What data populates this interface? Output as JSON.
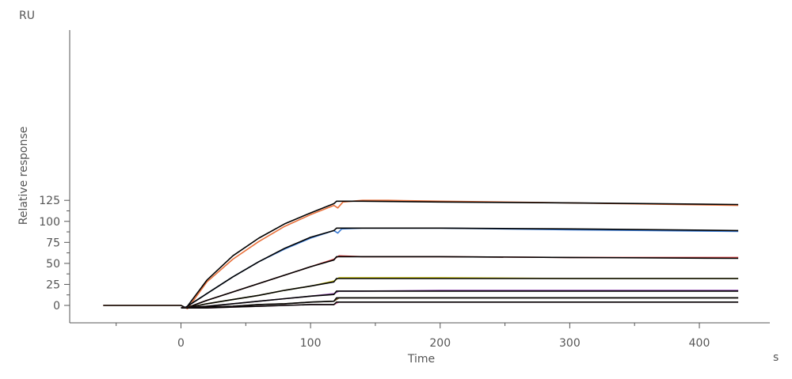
{
  "chart_data": {
    "type": "line",
    "title": "",
    "xlabel": "Time",
    "ylabel": "Relative response",
    "x_unit": "s",
    "y_unit": "RU",
    "xlim": [
      -62,
      435
    ],
    "ylim": [
      -4,
      128
    ],
    "x_ticks": [
      0,
      100,
      200,
      300,
      400
    ],
    "x_minor_ticks": [
      -50,
      50,
      150,
      250,
      350
    ],
    "y_ticks": [
      0,
      25,
      50,
      75,
      100,
      125
    ],
    "y_minor_ticks": [
      12.5,
      37.5,
      62.5,
      87.5,
      112.5
    ],
    "grid": false,
    "legend": "none",
    "injection_end": 120,
    "baseline_start": -60,
    "end_time": 430,
    "series": [
      {
        "color": "#e8703a",
        "values": [
          [
            -60,
            0
          ],
          [
            0,
            0
          ],
          [
            5,
            -4
          ],
          [
            20,
            28
          ],
          [
            40,
            55
          ],
          [
            60,
            76
          ],
          [
            80,
            94
          ],
          [
            100,
            108
          ],
          [
            118,
            119
          ],
          [
            121,
            116
          ],
          [
            125,
            123
          ],
          [
            140,
            125
          ],
          [
            160,
            125
          ],
          [
            200,
            124
          ],
          [
            300,
            122
          ],
          [
            430,
            119
          ]
        ]
      },
      {
        "color": "#000000",
        "values": [
          [
            -60,
            0
          ],
          [
            0,
            0
          ],
          [
            4,
            -3
          ],
          [
            20,
            30
          ],
          [
            40,
            59
          ],
          [
            60,
            80
          ],
          [
            80,
            97
          ],
          [
            100,
            110
          ],
          [
            118,
            121
          ],
          [
            120,
            124
          ],
          [
            140,
            124
          ],
          [
            200,
            123
          ],
          [
            300,
            122
          ],
          [
            430,
            120
          ]
        ]
      },
      {
        "color": "#3a7bd5",
        "values": [
          [
            0,
            -3
          ],
          [
            4,
            -2
          ],
          [
            20,
            14
          ],
          [
            40,
            34
          ],
          [
            60,
            52
          ],
          [
            80,
            67
          ],
          [
            100,
            80
          ],
          [
            118,
            89
          ],
          [
            121,
            86
          ],
          [
            124,
            91
          ],
          [
            140,
            92
          ],
          [
            200,
            92
          ],
          [
            300,
            90
          ],
          [
            430,
            88
          ]
        ]
      },
      {
        "color": "#000000",
        "values": [
          [
            0,
            -3
          ],
          [
            4,
            -2
          ],
          [
            20,
            14
          ],
          [
            40,
            34
          ],
          [
            60,
            52
          ],
          [
            80,
            68
          ],
          [
            100,
            81
          ],
          [
            118,
            89
          ],
          [
            120,
            92
          ],
          [
            140,
            92
          ],
          [
            200,
            92
          ],
          [
            300,
            91
          ],
          [
            430,
            89
          ]
        ]
      },
      {
        "color": "#d24040",
        "values": [
          [
            0,
            -3
          ],
          [
            4,
            -3
          ],
          [
            20,
            6
          ],
          [
            40,
            16
          ],
          [
            60,
            26
          ],
          [
            80,
            36
          ],
          [
            100,
            46
          ],
          [
            118,
            55
          ],
          [
            122,
            59
          ],
          [
            140,
            58
          ],
          [
            200,
            58
          ],
          [
            300,
            57
          ],
          [
            430,
            57
          ]
        ]
      },
      {
        "color": "#000000",
        "values": [
          [
            0,
            -3
          ],
          [
            4,
            -3
          ],
          [
            20,
            6
          ],
          [
            40,
            16
          ],
          [
            60,
            26
          ],
          [
            80,
            36
          ],
          [
            100,
            46
          ],
          [
            118,
            54
          ],
          [
            120,
            58
          ],
          [
            140,
            58
          ],
          [
            200,
            58
          ],
          [
            300,
            57
          ],
          [
            430,
            56
          ]
        ]
      },
      {
        "color": "#c8c020",
        "values": [
          [
            0,
            -3
          ],
          [
            4,
            -3
          ],
          [
            20,
            2
          ],
          [
            40,
            7
          ],
          [
            60,
            12
          ],
          [
            80,
            18
          ],
          [
            100,
            23
          ],
          [
            118,
            29
          ],
          [
            122,
            33
          ],
          [
            140,
            33
          ],
          [
            200,
            33
          ],
          [
            300,
            32
          ],
          [
            430,
            32
          ]
        ]
      },
      {
        "color": "#000000",
        "values": [
          [
            0,
            -3
          ],
          [
            4,
            -3
          ],
          [
            20,
            2
          ],
          [
            40,
            7
          ],
          [
            60,
            12
          ],
          [
            80,
            18
          ],
          [
            100,
            23
          ],
          [
            118,
            28
          ],
          [
            120,
            32
          ],
          [
            140,
            32
          ],
          [
            200,
            32
          ],
          [
            300,
            32
          ],
          [
            430,
            32
          ]
        ]
      },
      {
        "color": "#9b59b6",
        "values": [
          [
            0,
            -3
          ],
          [
            4,
            -3
          ],
          [
            20,
            -1
          ],
          [
            40,
            2
          ],
          [
            60,
            5
          ],
          [
            80,
            8
          ],
          [
            100,
            11
          ],
          [
            118,
            14
          ],
          [
            122,
            17
          ],
          [
            140,
            17
          ],
          [
            200,
            18
          ],
          [
            300,
            18
          ],
          [
            430,
            18
          ]
        ]
      },
      {
        "color": "#000000",
        "values": [
          [
            0,
            -3
          ],
          [
            4,
            -3
          ],
          [
            20,
            -1
          ],
          [
            40,
            2
          ],
          [
            60,
            5
          ],
          [
            80,
            8
          ],
          [
            100,
            11
          ],
          [
            118,
            13
          ],
          [
            120,
            17
          ],
          [
            140,
            17
          ],
          [
            200,
            17
          ],
          [
            300,
            17
          ],
          [
            430,
            17
          ]
        ]
      },
      {
        "color": "#7a5a2a",
        "values": [
          [
            0,
            -3
          ],
          [
            4,
            -3
          ],
          [
            20,
            -2
          ],
          [
            40,
            -1
          ],
          [
            60,
            1
          ],
          [
            80,
            2
          ],
          [
            100,
            4
          ],
          [
            118,
            5
          ],
          [
            122,
            9
          ],
          [
            140,
            9
          ],
          [
            200,
            9
          ],
          [
            300,
            9
          ],
          [
            430,
            9
          ]
        ]
      },
      {
        "color": "#000000",
        "values": [
          [
            0,
            -3
          ],
          [
            4,
            -3
          ],
          [
            20,
            -2
          ],
          [
            40,
            -1
          ],
          [
            60,
            1
          ],
          [
            80,
            2
          ],
          [
            100,
            4
          ],
          [
            118,
            5
          ],
          [
            120,
            9
          ],
          [
            140,
            9
          ],
          [
            200,
            9
          ],
          [
            300,
            9
          ],
          [
            430,
            9
          ]
        ]
      },
      {
        "color": "#e07aa8",
        "values": [
          [
            0,
            -3
          ],
          [
            4,
            -3
          ],
          [
            20,
            -3
          ],
          [
            40,
            -2
          ],
          [
            60,
            -1
          ],
          [
            80,
            0
          ],
          [
            100,
            1
          ],
          [
            118,
            1
          ],
          [
            122,
            4
          ],
          [
            140,
            4
          ],
          [
            200,
            4
          ],
          [
            300,
            4
          ],
          [
            430,
            4
          ]
        ]
      },
      {
        "color": "#000000",
        "values": [
          [
            0,
            -3
          ],
          [
            4,
            -3
          ],
          [
            20,
            -3
          ],
          [
            40,
            -2
          ],
          [
            60,
            -1
          ],
          [
            80,
            0
          ],
          [
            100,
            1
          ],
          [
            118,
            1
          ],
          [
            120,
            4
          ],
          [
            140,
            4
          ],
          [
            200,
            4
          ],
          [
            300,
            4
          ],
          [
            430,
            4
          ]
        ]
      }
    ]
  }
}
